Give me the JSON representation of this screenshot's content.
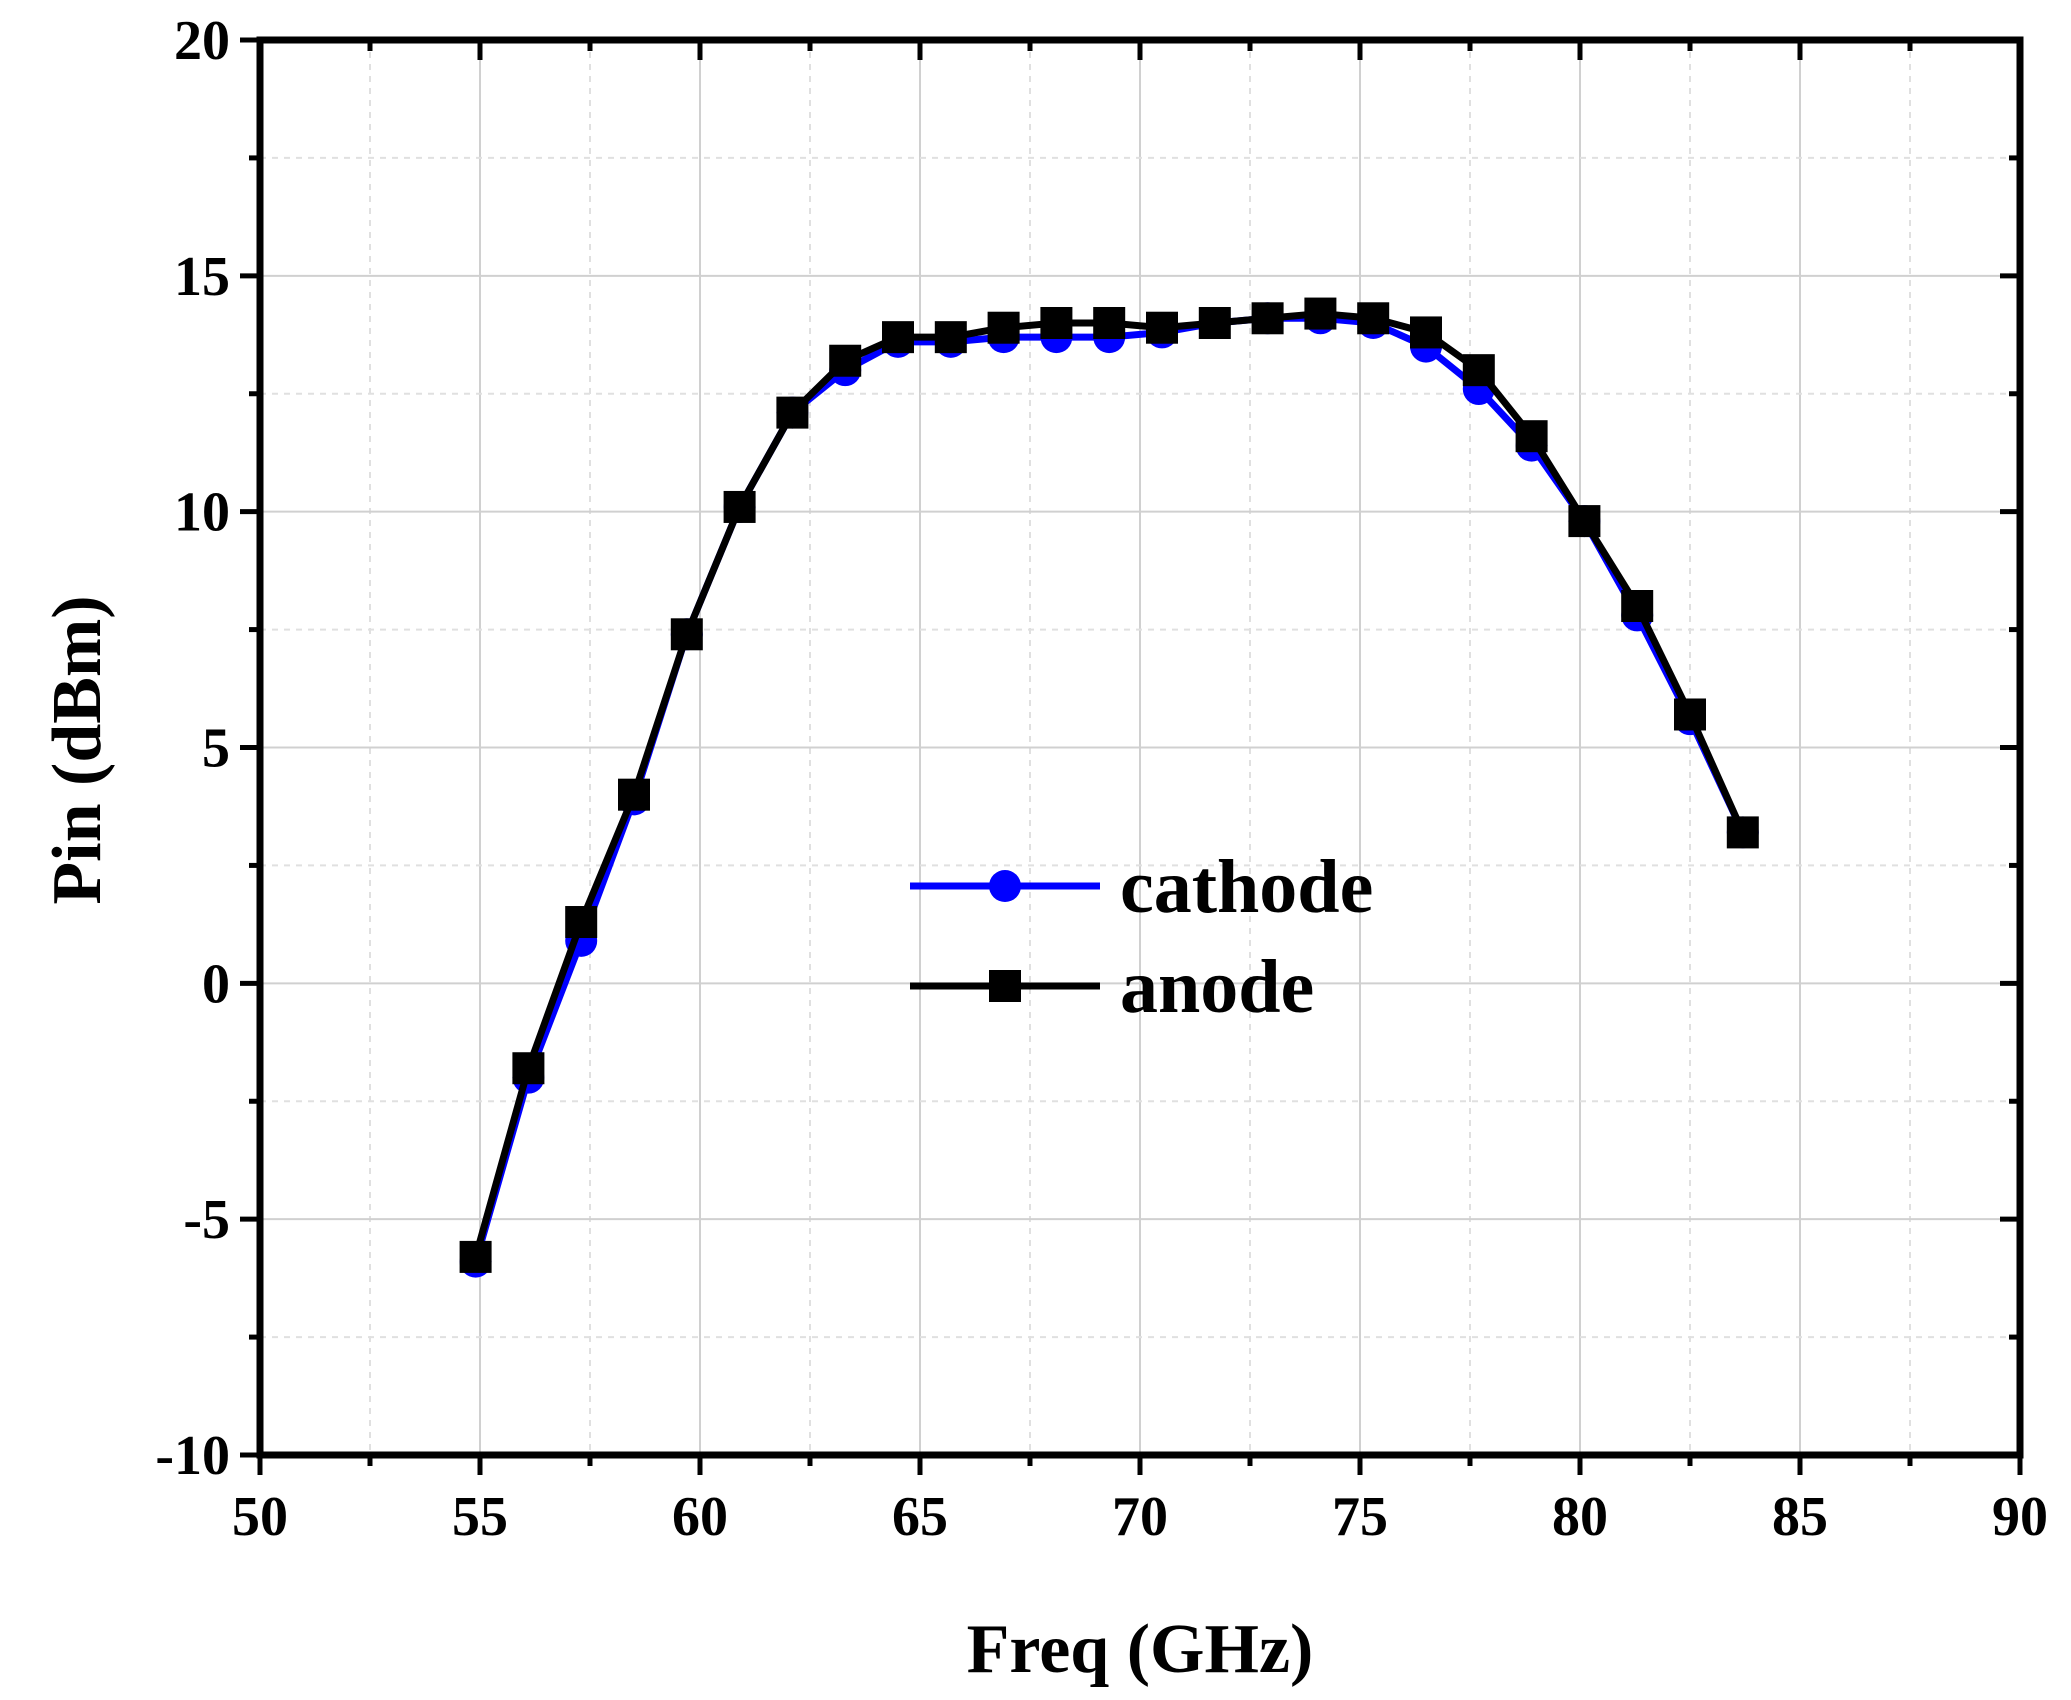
{
  "chart_data": {
    "type": "line",
    "title": "",
    "xlabel": "Freq (GHz)",
    "ylabel": "Pin (dBm)",
    "xlim": [
      50,
      90
    ],
    "ylim": [
      -10,
      20
    ],
    "xticks": [
      50,
      55,
      60,
      65,
      70,
      75,
      80,
      85,
      90
    ],
    "yticks": [
      -10,
      -5,
      0,
      5,
      10,
      15,
      20
    ],
    "xtick_labels": [
      "50",
      "55",
      "60",
      "65",
      "70",
      "75",
      "80",
      "85",
      "90"
    ],
    "ytick_labels": [
      "-10",
      "-5",
      "0",
      "5",
      "10",
      "15",
      "20"
    ],
    "grid": true,
    "legend_position": "center",
    "x": [
      54.9,
      56.1,
      57.3,
      58.5,
      59.7,
      60.9,
      62.1,
      63.3,
      64.5,
      65.7,
      66.9,
      68.1,
      69.3,
      70.5,
      71.7,
      72.9,
      74.1,
      75.3,
      76.5,
      77.7,
      78.9,
      80.1,
      81.3,
      82.5,
      83.7
    ],
    "series": [
      {
        "name": "cathode",
        "color": "#0000ff",
        "marker": "circle",
        "values": [
          -5.9,
          -2.0,
          0.9,
          3.9,
          7.4,
          10.1,
          12.1,
          13.0,
          13.6,
          13.6,
          13.7,
          13.7,
          13.7,
          13.8,
          14.0,
          14.1,
          14.1,
          14.0,
          13.5,
          12.6,
          11.4,
          9.8,
          7.8,
          5.6,
          3.2
        ]
      },
      {
        "name": "anode",
        "color": "#000000",
        "marker": "square",
        "values": [
          -5.8,
          -1.8,
          1.3,
          4.0,
          7.4,
          10.1,
          12.1,
          13.2,
          13.7,
          13.7,
          13.9,
          14.0,
          14.0,
          13.9,
          14.0,
          14.1,
          14.2,
          14.1,
          13.8,
          13.0,
          11.6,
          9.8,
          8.0,
          5.7,
          3.2
        ]
      }
    ]
  }
}
